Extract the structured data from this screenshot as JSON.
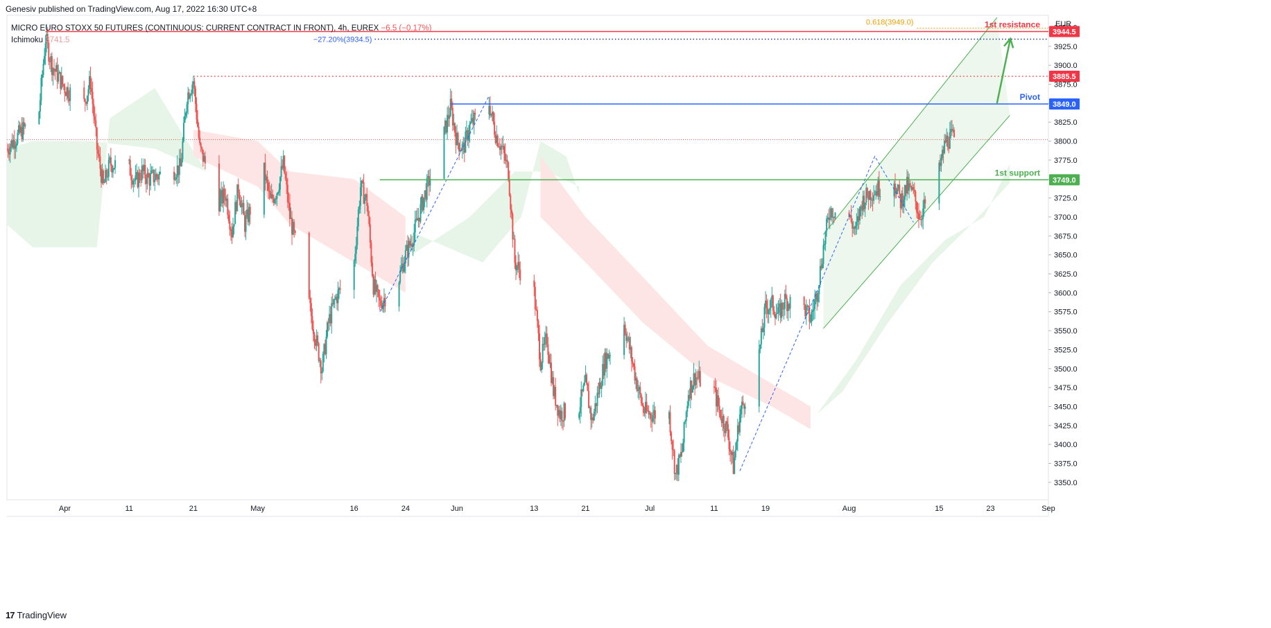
{
  "header": {
    "published": "Genesiv published on TradingView.com, Aug 17, 2022 16:30 UTC+8",
    "symbol": "MICRO EURO STOXX 50 FUTURES (CONTINUOUS: CURRENT CONTRACT IN FRONT), 4h, EUREX",
    "change": "−6.5 (−0.17%)",
    "indicator_name": "Ichimoku",
    "indicator_value": "3741.5"
  },
  "brand": {
    "logo": "17",
    "name": "TradingView"
  },
  "colors": {
    "up": "#26a69a",
    "down": "#ef5350",
    "resistance": "#f23645",
    "pivot": "#2962ff",
    "support": "#4caf50",
    "fib": "#f0a000",
    "fib_ext": "#2962ff",
    "cloud_green": "#e7f4e8",
    "cloud_red": "#fde5e5",
    "channel": "#4caf50"
  },
  "chart_data": {
    "type": "candlestick",
    "currency": "EUR",
    "y_range": [
      3327,
      3966
    ],
    "yticks": [
      3350,
      3375,
      3400,
      3425,
      3450,
      3475,
      3500,
      3525,
      3550,
      3575,
      3600,
      3625,
      3650,
      3675,
      3700,
      3725,
      3750,
      3775,
      3800,
      3825,
      3850,
      3875,
      3900,
      3925,
      3950
    ],
    "x_range": [
      "2022-03-23",
      "2022-09-01"
    ],
    "xticks": [
      {
        "date": "2022-04-01",
        "label": "Apr"
      },
      {
        "date": "2022-04-11",
        "label": "11"
      },
      {
        "date": "2022-04-21",
        "label": "21"
      },
      {
        "date": "2022-05-01",
        "label": "May"
      },
      {
        "date": "2022-05-16",
        "label": "16"
      },
      {
        "date": "2022-05-24",
        "label": "24"
      },
      {
        "date": "2022-06-01",
        "label": "Jun"
      },
      {
        "date": "2022-06-13",
        "label": "13"
      },
      {
        "date": "2022-06-21",
        "label": "21"
      },
      {
        "date": "2022-07-01",
        "label": "Jul"
      },
      {
        "date": "2022-07-11",
        "label": "11"
      },
      {
        "date": "2022-07-19",
        "label": "19"
      },
      {
        "date": "2022-08-01",
        "label": "Aug"
      },
      {
        "date": "2022-08-15",
        "label": "15"
      },
      {
        "date": "2022-08-23",
        "label": "23"
      },
      {
        "date": "2022-09-01",
        "label": "Sep"
      }
    ],
    "price_anchors": [
      [
        "2022-03-23",
        3790
      ],
      [
        "2022-03-25",
        3810
      ],
      [
        "2022-03-28",
        3840
      ],
      [
        "2022-03-29",
        3935
      ],
      [
        "2022-03-30",
        3900
      ],
      [
        "2022-04-01",
        3870
      ],
      [
        "2022-04-04",
        3850
      ],
      [
        "2022-04-05",
        3880
      ],
      [
        "2022-04-06",
        3790
      ],
      [
        "2022-04-07",
        3740
      ],
      [
        "2022-04-08",
        3770
      ],
      [
        "2022-04-11",
        3765
      ],
      [
        "2022-04-12",
        3745
      ],
      [
        "2022-04-13",
        3760
      ],
      [
        "2022-04-14",
        3750
      ],
      [
        "2022-04-19",
        3765
      ],
      [
        "2022-04-20",
        3860
      ],
      [
        "2022-04-21",
        3880
      ],
      [
        "2022-04-22",
        3790
      ],
      [
        "2022-04-25",
        3720
      ],
      [
        "2022-04-26",
        3730
      ],
      [
        "2022-04-27",
        3680
      ],
      [
        "2022-04-28",
        3740
      ],
      [
        "2022-04-29",
        3690
      ],
      [
        "2022-05-02",
        3760
      ],
      [
        "2022-05-03",
        3720
      ],
      [
        "2022-05-04",
        3735
      ],
      [
        "2022-05-05",
        3770
      ],
      [
        "2022-05-06",
        3700
      ],
      [
        "2022-05-09",
        3585
      ],
      [
        "2022-05-10",
        3540
      ],
      [
        "2022-05-11",
        3500
      ],
      [
        "2022-05-12",
        3560
      ],
      [
        "2022-05-13",
        3590
      ],
      [
        "2022-05-16",
        3640
      ],
      [
        "2022-05-17",
        3740
      ],
      [
        "2022-05-18",
        3720
      ],
      [
        "2022-05-19",
        3610
      ],
      [
        "2022-05-20",
        3585
      ],
      [
        "2022-05-23",
        3620
      ],
      [
        "2022-05-24",
        3650
      ],
      [
        "2022-05-25",
        3670
      ],
      [
        "2022-05-26",
        3700
      ],
      [
        "2022-05-27",
        3730
      ],
      [
        "2022-05-30",
        3810
      ],
      [
        "2022-05-31",
        3845
      ],
      [
        "2022-06-01",
        3800
      ],
      [
        "2022-06-02",
        3790
      ],
      [
        "2022-06-03",
        3820
      ],
      [
        "2022-06-06",
        3850
      ],
      [
        "2022-06-07",
        3810
      ],
      [
        "2022-06-08",
        3790
      ],
      [
        "2022-06-09",
        3760
      ],
      [
        "2022-06-10",
        3640
      ],
      [
        "2022-06-13",
        3600
      ],
      [
        "2022-06-14",
        3510
      ],
      [
        "2022-06-15",
        3540
      ],
      [
        "2022-06-16",
        3470
      ],
      [
        "2022-06-17",
        3440
      ],
      [
        "2022-06-20",
        3450
      ],
      [
        "2022-06-21",
        3480
      ],
      [
        "2022-06-22",
        3430
      ],
      [
        "2022-06-23",
        3470
      ],
      [
        "2022-06-24",
        3510
      ],
      [
        "2022-06-27",
        3560
      ],
      [
        "2022-06-28",
        3520
      ],
      [
        "2022-06-29",
        3480
      ],
      [
        "2022-06-30",
        3445
      ],
      [
        "2022-07-01",
        3440
      ],
      [
        "2022-07-04",
        3440
      ],
      [
        "2022-07-05",
        3360
      ],
      [
        "2022-07-06",
        3390
      ],
      [
        "2022-07-07",
        3470
      ],
      [
        "2022-07-08",
        3490
      ],
      [
        "2022-07-11",
        3470
      ],
      [
        "2022-07-12",
        3440
      ],
      [
        "2022-07-13",
        3420
      ],
      [
        "2022-07-14",
        3370
      ],
      [
        "2022-07-15",
        3440
      ],
      [
        "2022-07-18",
        3520
      ],
      [
        "2022-07-19",
        3580
      ],
      [
        "2022-07-20",
        3585
      ],
      [
        "2022-07-21",
        3570
      ],
      [
        "2022-07-22",
        3590
      ],
      [
        "2022-07-25",
        3580
      ],
      [
        "2022-07-26",
        3565
      ],
      [
        "2022-07-27",
        3600
      ],
      [
        "2022-07-28",
        3660
      ],
      [
        "2022-07-29",
        3710
      ],
      [
        "2022-08-01",
        3700
      ],
      [
        "2022-08-02",
        3680
      ],
      [
        "2022-08-03",
        3720
      ],
      [
        "2022-08-04",
        3730
      ],
      [
        "2022-08-05",
        3735
      ],
      [
        "2022-08-08",
        3750
      ],
      [
        "2022-08-09",
        3720
      ],
      [
        "2022-08-10",
        3740
      ],
      [
        "2022-08-11",
        3730
      ],
      [
        "2022-08-12",
        3700
      ],
      [
        "2022-08-15",
        3760
      ],
      [
        "2022-08-16",
        3800
      ],
      [
        "2022-08-17",
        3805
      ]
    ],
    "cloud": {
      "green": [
        [
          [
            "2022-03-23",
            3690
          ],
          [
            "2022-03-27",
            3660
          ],
          [
            "2022-04-06",
            3660
          ],
          [
            "2022-04-08",
            3830
          ],
          [
            "2022-04-15",
            3870
          ],
          [
            "2022-04-20",
            3800
          ],
          [
            "2022-04-23",
            3760
          ],
          [
            "2022-04-23",
            3760
          ],
          [
            "2022-04-15",
            3790
          ],
          [
            "2022-04-05",
            3800
          ],
          [
            "2022-03-27",
            3800
          ],
          [
            "2022-03-23",
            3790
          ]
        ],
        [
          [
            "2022-05-25",
            3680
          ],
          [
            "2022-06-05",
            3640
          ],
          [
            "2022-06-11",
            3700
          ],
          [
            "2022-06-14",
            3800
          ],
          [
            "2022-06-18",
            3780
          ],
          [
            "2022-06-20",
            3730
          ],
          [
            "2022-06-20",
            3740
          ],
          [
            "2022-06-15",
            3760
          ],
          [
            "2022-06-10",
            3760
          ],
          [
            "2022-06-03",
            3700
          ],
          [
            "2022-05-25",
            3650
          ]
        ],
        [
          [
            "2022-07-27",
            3440
          ],
          [
            "2022-08-02",
            3510
          ],
          [
            "2022-08-09",
            3610
          ],
          [
            "2022-08-16",
            3670
          ],
          [
            "2022-08-22",
            3700
          ],
          [
            "2022-08-26",
            3770
          ],
          [
            "2022-08-26",
            3745
          ],
          [
            "2022-08-20",
            3690
          ],
          [
            "2022-08-14",
            3640
          ],
          [
            "2022-08-07",
            3560
          ],
          [
            "2022-07-31",
            3470
          ],
          [
            "2022-07-27",
            3440
          ]
        ]
      ],
      "red": [
        [
          [
            "2022-04-21",
            3815
          ],
          [
            "2022-05-01",
            3800
          ],
          [
            "2022-05-06",
            3760
          ],
          [
            "2022-05-16",
            3750
          ],
          [
            "2022-05-24",
            3700
          ],
          [
            "2022-05-24",
            3600
          ],
          [
            "2022-05-16",
            3640
          ],
          [
            "2022-05-06",
            3690
          ],
          [
            "2022-05-01",
            3740
          ],
          [
            "2022-04-21",
            3780
          ]
        ],
        [
          [
            "2022-06-14",
            3780
          ],
          [
            "2022-06-21",
            3700
          ],
          [
            "2022-06-30",
            3620
          ],
          [
            "2022-07-10",
            3530
          ],
          [
            "2022-07-20",
            3480
          ],
          [
            "2022-07-26",
            3450
          ],
          [
            "2022-07-26",
            3420
          ],
          [
            "2022-07-20",
            3450
          ],
          [
            "2022-07-10",
            3490
          ],
          [
            "2022-06-30",
            3560
          ],
          [
            "2022-06-21",
            3640
          ],
          [
            "2022-06-14",
            3700
          ]
        ]
      ]
    },
    "current_price_line": 3802,
    "levels": [
      {
        "name": "1st resistance",
        "value": 3944.5,
        "label": "3944.5",
        "text": "1st resistance",
        "start": "2022-03-29"
      },
      {
        "name": "resistance-dotted",
        "value": 3885.5,
        "label": "3885.5",
        "text": "",
        "start": "2022-04-21"
      },
      {
        "name": "Pivot",
        "value": 3849.0,
        "label": "3849.0",
        "text": "Pivot",
        "start": "2022-05-31"
      },
      {
        "name": "1st support",
        "value": 3749.0,
        "label": "3749.0",
        "text": "1st support",
        "start": "2022-05-20"
      }
    ],
    "fib": {
      "label": "0.618(3949.0)",
      "value": 3949.0,
      "start": "2022-08-04"
    },
    "fib_ext": {
      "label": "−27.20%(3934.5)",
      "value": 3934.5,
      "start": "2022-05-19"
    },
    "channel": {
      "upper": [
        [
          "2022-07-28",
          3677
        ],
        [
          "2022-08-24",
          3963
        ]
      ],
      "lower": [
        [
          "2022-07-28",
          3553
        ],
        [
          "2022-08-26",
          3834
        ]
      ]
    },
    "projection_arrow": [
      [
        "2022-08-24",
        3850
      ],
      [
        "2022-08-25",
        3935
      ]
    ],
    "dashed_swings": [
      [
        [
          "2022-05-20",
          3575
        ],
        [
          "2022-06-06",
          3860
        ]
      ],
      [
        [
          "2022-07-15",
          3365
        ],
        [
          "2022-08-05",
          3780
        ],
        [
          "2022-08-11",
          3693
        ]
      ]
    ]
  }
}
